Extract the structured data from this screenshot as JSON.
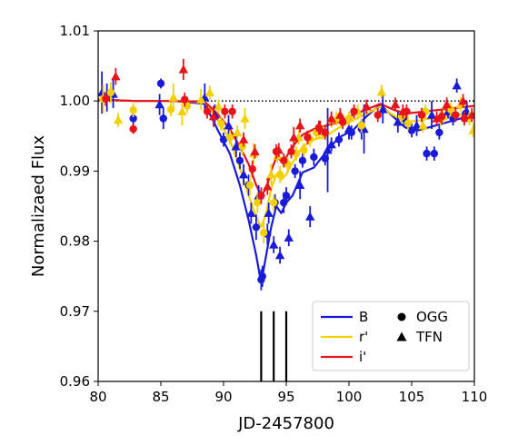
{
  "chart_data": {
    "type": "scatter",
    "xlabel": "JD-2457800",
    "ylabel": "Normalizaed Flux",
    "xlim": [
      80,
      110
    ],
    "ylim": [
      0.96,
      1.01
    ],
    "xticks": [
      80,
      85,
      90,
      95,
      100,
      105,
      110
    ],
    "xtick_labels": [
      "80",
      "85",
      "90",
      "95",
      "100",
      "105",
      "110"
    ],
    "yticks": [
      0.96,
      0.97,
      0.98,
      0.99,
      1.0,
      1.01
    ],
    "ytick_labels": [
      "0.96",
      "0.97",
      "0.98",
      "0.99",
      "1.00",
      "1.01"
    ],
    "grid": false,
    "legend_placement": "bottom-right",
    "reference_line": {
      "y": 1.0,
      "style": "dotted",
      "color": "#000000"
    },
    "vertical_markers": {
      "x": [
        93.0,
        94.0,
        95.0
      ],
      "y_range": [
        0.96,
        0.97
      ],
      "color": "#000000"
    },
    "colors": {
      "B": "#1a1adb",
      "r": "#f5d000",
      "i": "#e8141a"
    },
    "legend": {
      "lines": [
        {
          "label": "B",
          "color_key": "B"
        },
        {
          "label": "r'",
          "color_key": "r"
        },
        {
          "label": "i'",
          "color_key": "i"
        }
      ],
      "markers": [
        {
          "label": "OGG",
          "shape": "circle"
        },
        {
          "label": "TFN",
          "shape": "triangle"
        }
      ]
    },
    "model_lines": [
      {
        "band": "B",
        "x": [
          80,
          83,
          86,
          88.5,
          89.5,
          90.5,
          91.3,
          92,
          92.6,
          93.0,
          93.4,
          93.8,
          94.2,
          94.6,
          95.0,
          95.5,
          96.3,
          97.2,
          98.2,
          99.2,
          100.3,
          101.4,
          102.5,
          103.5,
          104.5,
          105.5,
          106.5,
          107.5,
          108.5,
          109.5,
          110
        ],
        "y": [
          1.0002,
          1.0,
          1.0,
          0.9996,
          0.996,
          0.9925,
          0.988,
          0.983,
          0.978,
          0.974,
          0.978,
          0.982,
          0.985,
          0.984,
          0.9855,
          0.9865,
          0.9898,
          0.9905,
          0.9928,
          0.9948,
          0.9958,
          0.9978,
          0.9995,
          0.9978,
          0.9962,
          0.9958,
          0.9963,
          0.9968,
          0.9973,
          0.9978,
          0.9982
        ]
      },
      {
        "band": "r",
        "x": [
          80,
          83,
          86,
          88.5,
          89.5,
          90.5,
          91.3,
          92,
          92.6,
          93.0,
          93.4,
          93.8,
          94.2,
          94.6,
          95.0,
          95.5,
          96.3,
          97.2,
          98.2,
          99.2,
          100.3,
          101.4,
          102.5,
          103.5,
          104.5,
          105.5,
          106.5,
          107.5,
          108.5,
          109.5,
          110
        ],
        "y": [
          1.0002,
          1.0,
          1.0,
          0.9998,
          0.9975,
          0.9945,
          0.9905,
          0.9865,
          0.9835,
          0.982,
          0.984,
          0.9875,
          0.9895,
          0.9888,
          0.9895,
          0.9912,
          0.9935,
          0.9945,
          0.995,
          0.9962,
          0.9972,
          0.9982,
          0.9992,
          0.998,
          0.997,
          0.9972,
          0.9975,
          0.9978,
          0.998,
          0.9982,
          0.9984
        ]
      },
      {
        "band": "i",
        "x": [
          80,
          83,
          86,
          88.5,
          89.5,
          90.5,
          91.3,
          92,
          92.6,
          93.0,
          93.4,
          93.8,
          94.2,
          94.6,
          95.0,
          95.5,
          96.3,
          97.2,
          98.2,
          99.2,
          100.3,
          101.4,
          102.5,
          103.5,
          104.5,
          105.5,
          106.5,
          107.5,
          108.5,
          109.5,
          110
        ],
        "y": [
          1.0002,
          1.0,
          1.0,
          0.9999,
          0.9982,
          0.996,
          0.9935,
          0.991,
          0.988,
          0.9865,
          0.9875,
          0.99,
          0.992,
          0.9915,
          0.992,
          0.9935,
          0.9952,
          0.996,
          0.9965,
          0.997,
          0.998,
          0.9988,
          0.9996,
          0.9988,
          0.9982,
          0.9984,
          0.9986,
          0.9988,
          0.999,
          0.9992,
          0.9993
        ]
      }
    ],
    "series": [
      {
        "band": "B",
        "site": "OGG",
        "x": [
          82.8,
          85.0,
          85.2,
          90.0,
          91.3,
          92.0,
          92.6,
          93.0,
          93.1,
          93.5,
          94.1,
          94.8,
          95.0,
          95.7,
          96.3,
          97.2,
          98.1,
          99.2,
          100.2,
          101.0,
          104.4,
          105.0,
          106.2,
          106.8,
          107.2,
          108.3,
          109.3
        ],
        "y": [
          0.9975,
          1.0025,
          0.9975,
          0.9945,
          0.9915,
          0.988,
          0.982,
          0.9745,
          0.975,
          0.981,
          0.9855,
          0.9855,
          0.9865,
          0.99,
          0.9915,
          0.992,
          0.9918,
          0.9945,
          0.9955,
          0.996,
          0.9975,
          0.9958,
          0.9925,
          0.9925,
          0.9955,
          0.9975,
          0.9982
        ],
        "err": [
          0.001,
          0.0007,
          0.0015,
          0.001,
          0.0012,
          0.0015,
          0.0018,
          0.0015,
          0.0015,
          0.0015,
          0.0012,
          0.0015,
          0.0012,
          0.001,
          0.001,
          0.0012,
          0.001,
          0.001,
          0.001,
          0.0015,
          0.001,
          0.001,
          0.001,
          0.001,
          0.001,
          0.001,
          0.001
        ]
      },
      {
        "band": "B",
        "site": "TFN",
        "x": [
          80.3,
          80.7,
          81.2,
          84.9,
          88.5,
          89.3,
          90.4,
          91.0,
          91.6,
          92.2,
          92.8,
          93.6,
          94.0,
          94.5,
          95.2,
          96.1,
          96.9,
          98.3,
          98.6,
          100.0,
          101.2,
          102.7,
          103.9,
          105.4,
          106.6,
          107.9,
          108.6,
          109.4
        ],
        "y": [
          1.0012,
          1.0005,
          1.001,
          0.9995,
          1.0005,
          0.998,
          0.9965,
          0.9935,
          0.9895,
          0.984,
          0.9865,
          0.984,
          0.9795,
          0.978,
          0.9805,
          0.988,
          0.9835,
          0.993,
          0.9938,
          0.996,
          0.996,
          0.9988,
          0.997,
          0.9965,
          0.998,
          0.9985,
          1.0022,
          0.9985
        ],
        "err": [
          0.003,
          0.002,
          0.002,
          0.0015,
          0.002,
          0.0015,
          0.0015,
          0.0015,
          0.0015,
          0.0015,
          0.0015,
          0.0015,
          0.0012,
          0.0012,
          0.0012,
          0.002,
          0.0015,
          0.006,
          0.001,
          0.0015,
          0.0035,
          0.002,
          0.0015,
          0.0015,
          0.002,
          0.001,
          0.001,
          0.0015
        ]
      },
      {
        "band": "r",
        "site": "OGG",
        "x": [
          80.4,
          81.0,
          82.8,
          85.8,
          87.1,
          89.8,
          90.5,
          91.5,
          92.1,
          92.7,
          93.2,
          94.0,
          94.5,
          95.1,
          95.8,
          96.4,
          96.9,
          97.4,
          97.9,
          98.6,
          99.3,
          100.0,
          101.0,
          104.2,
          104.7,
          106.1,
          107.3,
          108.1,
          109.6
        ],
        "y": [
          1.0003,
          1.0012,
          0.9987,
          0.9988,
          0.9993,
          0.9968,
          0.9948,
          0.9935,
          0.988,
          0.9855,
          0.9812,
          0.9855,
          0.9895,
          0.991,
          0.9925,
          0.993,
          0.9945,
          0.9955,
          0.9955,
          0.9972,
          0.9978,
          0.9975,
          0.9965,
          0.9978,
          0.9968,
          0.9985,
          0.9975,
          0.9988,
          0.9975
        ],
        "err": [
          0.002,
          0.0015,
          0.001,
          0.001,
          0.001,
          0.001,
          0.001,
          0.0012,
          0.0015,
          0.0015,
          0.0015,
          0.0012,
          0.0012,
          0.001,
          0.001,
          0.001,
          0.001,
          0.001,
          0.001,
          0.001,
          0.001,
          0.001,
          0.001,
          0.001,
          0.001,
          0.001,
          0.001,
          0.001,
          0.001
        ]
      },
      {
        "band": "r",
        "site": "TFN",
        "x": [
          81.6,
          86.0,
          86.7,
          88.2,
          88.9,
          89.6,
          91.1,
          91.7,
          92.4,
          93.8,
          94.3,
          96.0,
          97.6,
          99.0,
          100.7,
          102.6,
          105.9,
          107.5,
          108.9,
          109.9
        ],
        "y": [
          0.9973,
          1.0005,
          0.9985,
          1.0002,
          1.0012,
          0.9992,
          0.9955,
          0.9975,
          0.9925,
          0.9895,
          0.9922,
          0.9948,
          0.996,
          0.9975,
          0.9985,
          1.0013,
          0.9965,
          0.9978,
          0.9995,
          0.9958
        ],
        "err": [
          0.001,
          0.002,
          0.002,
          0.0015,
          0.001,
          0.001,
          0.001,
          0.0015,
          0.0015,
          0.0015,
          0.001,
          0.001,
          0.0012,
          0.001,
          0.001,
          0.001,
          0.001,
          0.001,
          0.001,
          0.001
        ]
      },
      {
        "band": "i",
        "site": "OGG",
        "x": [
          80.6,
          82.8,
          86.9,
          88.7,
          90.1,
          90.7,
          92.3,
          93.0,
          94.2,
          94.8,
          95.4,
          96.7,
          97.6,
          98.1,
          99.5,
          100.4,
          102.3,
          104.6,
          105.8,
          107.4,
          108.5,
          109.2
        ],
        "y": [
          1.0003,
          0.996,
          1.0002,
          0.9985,
          0.9985,
          0.9985,
          0.9903,
          0.9865,
          0.9928,
          0.9915,
          0.9928,
          0.9948,
          0.9962,
          0.9955,
          0.997,
          0.9985,
          0.998,
          0.9985,
          0.998,
          0.9978,
          0.998,
          0.9975
        ],
        "err": [
          0.001,
          0.0007,
          0.001,
          0.001,
          0.001,
          0.001,
          0.0012,
          0.0012,
          0.001,
          0.001,
          0.001,
          0.001,
          0.001,
          0.001,
          0.001,
          0.001,
          0.001,
          0.001,
          0.001,
          0.001,
          0.001,
          0.001
        ]
      },
      {
        "band": "i",
        "site": "TFN",
        "x": [
          81.4,
          86.8,
          89.2,
          91.6,
          92.5,
          93.5,
          94.4,
          95.6,
          96.1,
          97.7,
          98.6,
          99.3,
          101.4,
          103.7,
          104.3,
          107.0,
          107.8,
          109.1,
          109.8
        ],
        "y": [
          1.0035,
          1.0045,
          0.9978,
          0.9945,
          0.9928,
          0.9878,
          0.993,
          0.9948,
          0.9965,
          0.9962,
          0.9975,
          0.998,
          0.9992,
          0.9995,
          0.9985,
          0.9975,
          0.9995,
          1.0,
          0.998
        ],
        "err": [
          0.0012,
          0.0015,
          0.0015,
          0.001,
          0.001,
          0.0012,
          0.001,
          0.0015,
          0.001,
          0.001,
          0.001,
          0.001,
          0.001,
          0.001,
          0.001,
          0.001,
          0.001,
          0.001,
          0.001
        ]
      }
    ]
  }
}
